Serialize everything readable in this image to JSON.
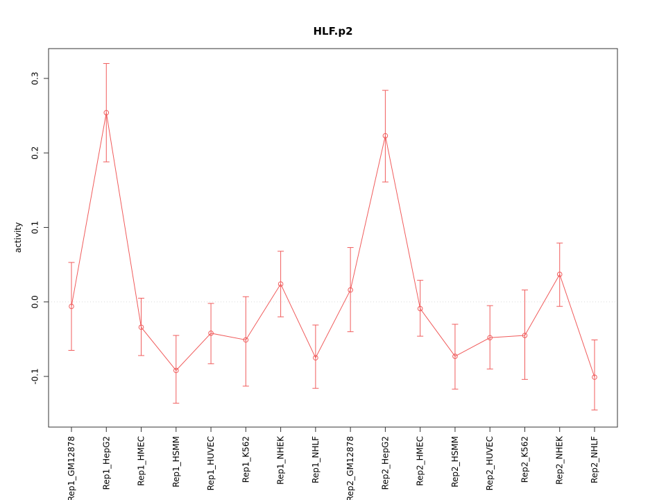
{
  "chart_data": {
    "type": "line",
    "title": "HLF.p2",
    "ylabel": "activity",
    "categories": [
      "Rep1_GM12878",
      "Rep1_HepG2",
      "Rep1_HMEC",
      "Rep1_HSMM",
      "Rep1_HUVEC",
      "Rep1_K562",
      "Rep1_NHEK",
      "Rep1_NHLF",
      "Rep2_GM12878",
      "Rep2_HepG2",
      "Rep2_HMEC",
      "Rep2_HSMM",
      "Rep2_HUVEC",
      "Rep2_K562",
      "Rep2_NHEK",
      "Rep2_NHLF"
    ],
    "values": [
      -0.006,
      0.254,
      -0.034,
      -0.092,
      -0.042,
      -0.051,
      0.024,
      -0.075,
      0.016,
      0.223,
      -0.009,
      -0.073,
      -0.048,
      -0.045,
      0.037,
      -0.101
    ],
    "error_low": [
      -0.065,
      0.188,
      -0.072,
      -0.136,
      -0.083,
      -0.113,
      -0.02,
      -0.116,
      -0.04,
      0.161,
      -0.046,
      -0.117,
      -0.09,
      -0.104,
      -0.006,
      -0.145
    ],
    "error_high": [
      0.053,
      0.32,
      0.005,
      -0.045,
      -0.002,
      0.007,
      0.068,
      -0.031,
      0.073,
      0.284,
      0.029,
      -0.03,
      -0.005,
      0.016,
      0.079,
      -0.051
    ],
    "yticks": [
      -0.1,
      0.0,
      0.1,
      0.2,
      0.3
    ],
    "ylim": [
      -0.168,
      0.34
    ],
    "reference_line": 0,
    "grid": "dotted horizontal line at y=0 only",
    "legend": "none",
    "series_color": "#f05b5b",
    "reference_line_color": "#dcdcdc",
    "axis_color": "#333333"
  }
}
